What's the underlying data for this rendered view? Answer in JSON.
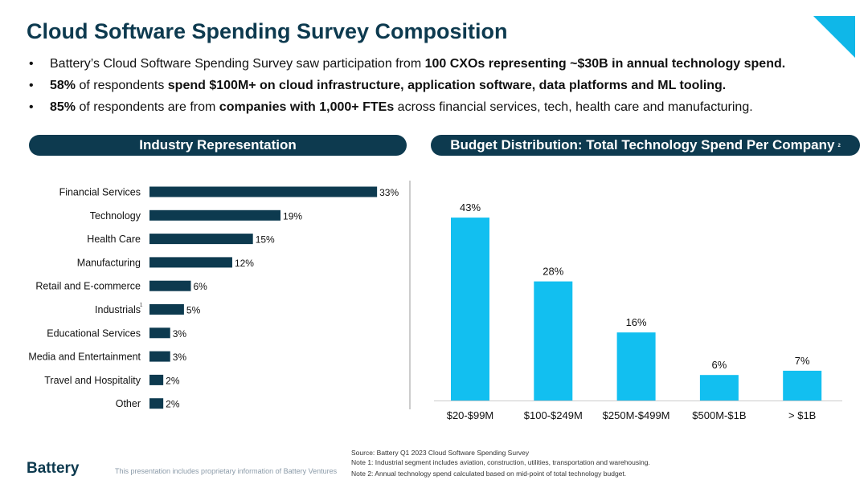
{
  "title": "Cloud Software Spending Survey Composition",
  "bullets": [
    {
      "parts": [
        [
          "Battery’s Cloud Software Spending Survey saw participation from ",
          false
        ],
        [
          "100 CXOs representing ~$30B in annual technology spend.",
          true
        ]
      ]
    },
    {
      "parts": [
        [
          "58%",
          true
        ],
        [
          " of respondents ",
          false
        ],
        [
          "spend $100M+ on cloud infrastructure, application software, data platforms and ML tooling.",
          true
        ]
      ]
    },
    {
      "parts": [
        [
          "85%",
          true
        ],
        [
          " of respondents are from ",
          false
        ],
        [
          "companies with 1,000+ FTEs",
          true
        ],
        [
          " across financial services, tech, health care and manufacturing.",
          false
        ]
      ]
    }
  ],
  "chart_data": [
    {
      "type": "bar",
      "orientation": "horizontal",
      "title": "Industry Representation",
      "categories": [
        "Financial Services",
        "Technology",
        "Health Care",
        "Manufacturing",
        "Retail and E-commerce",
        "Industrials",
        "Educational Services",
        "Media and Entertainment",
        "Travel and Hospitality",
        "Other"
      ],
      "values": [
        33,
        19,
        15,
        12,
        6,
        5,
        3,
        3,
        2,
        2
      ],
      "labels": [
        "33%",
        "19%",
        "15%",
        "12%",
        "6%",
        "5%",
        "3%",
        "3%",
        "2%",
        "2%"
      ],
      "footnote_marks": {
        "Industrials": "1"
      },
      "color": "#0d3a4f"
    },
    {
      "type": "bar",
      "title": "Budget Distribution: Total Technology Spend Per Company",
      "title_note": "2",
      "categories": [
        "$20-$99M",
        "$100-$249M",
        "$250M-$499M",
        "$500M-$1B",
        "> $1B"
      ],
      "values": [
        43,
        28,
        16,
        6,
        7
      ],
      "labels": [
        "43%",
        "28%",
        "16%",
        "6%",
        "7%"
      ],
      "color": "#12bff0"
    }
  ],
  "footer": {
    "logo": "Battery",
    "proprietary": "This presentation includes proprietary information of Battery Ventures",
    "notes": [
      "Source: Battery Q1 2023 Cloud Software Spending Survey",
      "Note 1: Industrial segment includes aviation, construction, utilities, transportation and warehousing.",
      "Note 2: Annual technology spend calculated based on mid-point of total technology budget."
    ]
  }
}
